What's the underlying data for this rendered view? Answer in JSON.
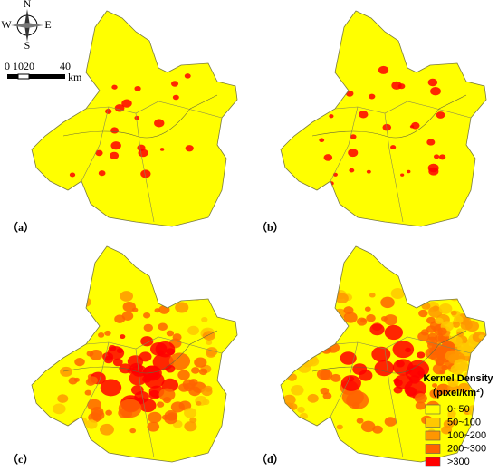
{
  "compass": {
    "north": "N",
    "south": "S",
    "west": "W",
    "east": "E"
  },
  "scale_bar": {
    "labels": [
      "0",
      "10",
      "20",
      "40"
    ],
    "unit": "km"
  },
  "panels": [
    {
      "label": "（a）"
    },
    {
      "label": "（b）"
    },
    {
      "label": "（c）"
    },
    {
      "label": "（d）"
    }
  ],
  "legend": {
    "title": "Kernel Density",
    "subtitle": "（pixel/km²）",
    "items": [
      {
        "label": "0~50",
        "color": "#ffff00"
      },
      {
        "label": "50~100",
        "color": "#ffc800"
      },
      {
        "label": "100~200",
        "color": "#ff9600"
      },
      {
        "label": "200~300",
        "color": "#ff6400"
      },
      {
        "label": ">300",
        "color": "#ff0000"
      }
    ]
  }
}
